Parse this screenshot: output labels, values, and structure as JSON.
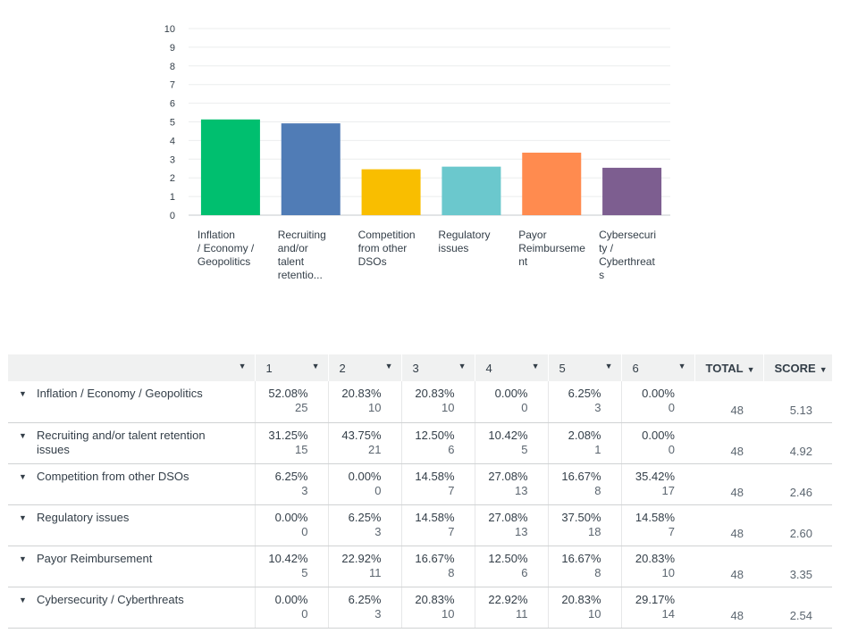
{
  "chart_data": {
    "type": "bar",
    "categories": [
      [
        "Inflation",
        "/ Economy /",
        "Geopolitics"
      ],
      [
        "Recruiting",
        "and/or",
        "talent",
        "retentio..."
      ],
      [
        "Competition",
        "from other",
        "DSOs"
      ],
      [
        "Regulatory",
        "issues"
      ],
      [
        "Payor",
        "Reimburseme",
        "nt"
      ],
      [
        "Cybersecuri",
        "ty /",
        "Cyberthreat",
        "s"
      ]
    ],
    "values": [
      5.13,
      4.92,
      2.46,
      2.6,
      3.35,
      2.54
    ],
    "colors": [
      "#00bf6f",
      "#507cb6",
      "#f9be00",
      "#6bc8cd",
      "#ff8b4f",
      "#7d5e90"
    ],
    "ylim": [
      0,
      10
    ],
    "yticks": [
      "0",
      "1",
      "2",
      "3",
      "4",
      "5",
      "6",
      "7",
      "8",
      "9",
      "10"
    ],
    "grid": true,
    "title": "",
    "xlabel": "",
    "ylabel": ""
  },
  "table": {
    "headers": [
      "1",
      "2",
      "3",
      "4",
      "5",
      "6",
      "TOTAL",
      "SCORE"
    ],
    "rows": [
      {
        "label": "Inflation / Economy / Geopolitics",
        "cells": [
          [
            "52.08%",
            "25"
          ],
          [
            "20.83%",
            "10"
          ],
          [
            "20.83%",
            "10"
          ],
          [
            "0.00%",
            "0"
          ],
          [
            "6.25%",
            "3"
          ],
          [
            "0.00%",
            "0"
          ]
        ],
        "total": "48",
        "score": "5.13"
      },
      {
        "label": "Recruiting and/or talent retention issues",
        "cells": [
          [
            "31.25%",
            "15"
          ],
          [
            "43.75%",
            "21"
          ],
          [
            "12.50%",
            "6"
          ],
          [
            "10.42%",
            "5"
          ],
          [
            "2.08%",
            "1"
          ],
          [
            "0.00%",
            "0"
          ]
        ],
        "total": "48",
        "score": "4.92"
      },
      {
        "label": "Competition from other DSOs",
        "cells": [
          [
            "6.25%",
            "3"
          ],
          [
            "0.00%",
            "0"
          ],
          [
            "14.58%",
            "7"
          ],
          [
            "27.08%",
            "13"
          ],
          [
            "16.67%",
            "8"
          ],
          [
            "35.42%",
            "17"
          ]
        ],
        "total": "48",
        "score": "2.46"
      },
      {
        "label": "Regulatory issues",
        "cells": [
          [
            "0.00%",
            "0"
          ],
          [
            "6.25%",
            "3"
          ],
          [
            "14.58%",
            "7"
          ],
          [
            "27.08%",
            "13"
          ],
          [
            "37.50%",
            "18"
          ],
          [
            "14.58%",
            "7"
          ]
        ],
        "total": "48",
        "score": "2.60"
      },
      {
        "label": "Payor Reimbursement",
        "cells": [
          [
            "10.42%",
            "5"
          ],
          [
            "22.92%",
            "11"
          ],
          [
            "16.67%",
            "8"
          ],
          [
            "12.50%",
            "6"
          ],
          [
            "16.67%",
            "8"
          ],
          [
            "20.83%",
            "10"
          ]
        ],
        "total": "48",
        "score": "3.35"
      },
      {
        "label": "Cybersecurity / Cyberthreats",
        "cells": [
          [
            "0.00%",
            "0"
          ],
          [
            "6.25%",
            "3"
          ],
          [
            "20.83%",
            "10"
          ],
          [
            "22.92%",
            "11"
          ],
          [
            "20.83%",
            "10"
          ],
          [
            "29.17%",
            "14"
          ]
        ],
        "total": "48",
        "score": "2.54"
      }
    ]
  },
  "icons": {
    "caret": "caret-down-icon"
  }
}
